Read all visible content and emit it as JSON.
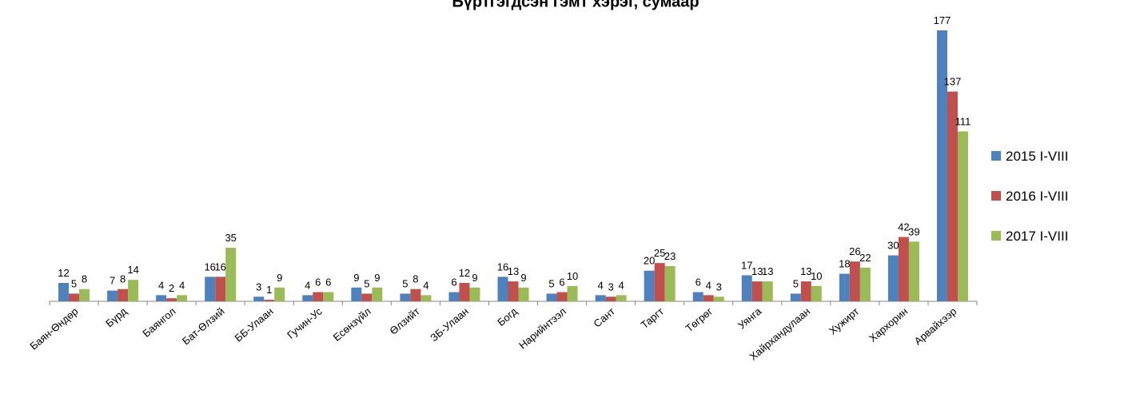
{
  "chart_data": {
    "type": "bar",
    "title": "Бүртгэгдсэн гэмт хэрэг, сумаар",
    "categories": [
      "Баян-Өндөр",
      "Бүрд",
      "Баянгол",
      "Бат-Өлзий",
      "ББ-Улаан",
      "Гучин-Ус",
      "Есөнзүйл",
      "Өлзийт",
      "ЗБ-Улаан",
      "Богд",
      "Нарийнтээл",
      "Сант",
      "Таргт",
      "Төгрөг",
      "Уянга",
      "Хайрхандулаан",
      "Хужирт",
      "Хархорин",
      "Арвайхээр"
    ],
    "series": [
      {
        "name": "2015 I-VIII",
        "color": "#4f81bd",
        "values": [
          12,
          7,
          4,
          16,
          3,
          4,
          9,
          5,
          6,
          16,
          5,
          4,
          20,
          6,
          17,
          5,
          18,
          30,
          177
        ]
      },
      {
        "name": "2016 I-VIII",
        "color": "#c0504d",
        "values": [
          5,
          8,
          2,
          16,
          1,
          6,
          5,
          8,
          12,
          13,
          6,
          3,
          25,
          4,
          13,
          13,
          26,
          42,
          137
        ]
      },
      {
        "name": "2017 I-VIII",
        "color": "#9bbb59",
        "values": [
          8,
          14,
          4,
          35,
          9,
          6,
          9,
          4,
          9,
          9,
          10,
          4,
          23,
          3,
          13,
          10,
          22,
          39,
          111
        ]
      }
    ],
    "legend": "right"
  }
}
